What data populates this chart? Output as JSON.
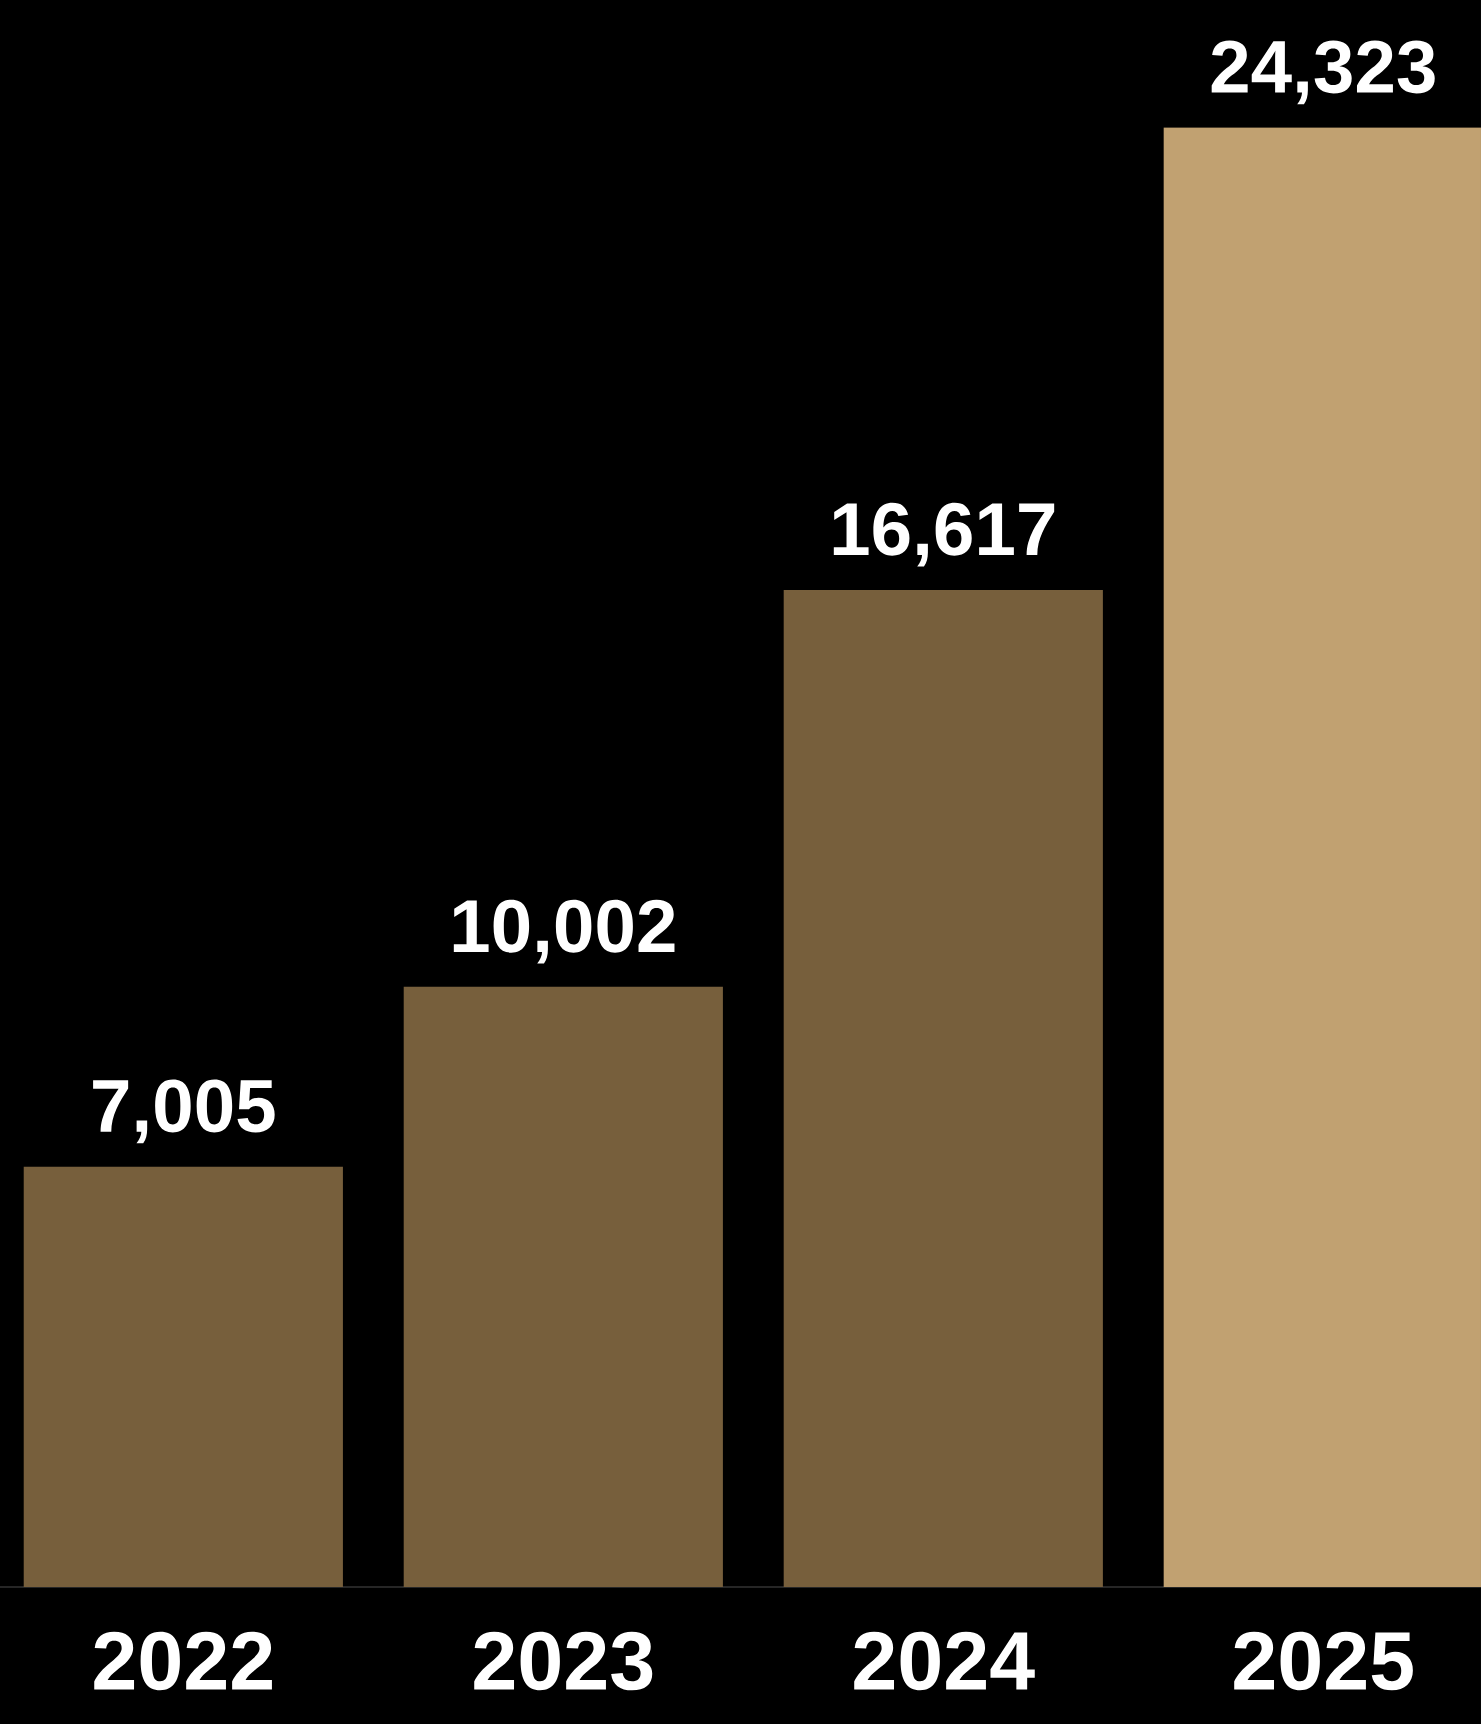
{
  "chart_data": {
    "type": "bar",
    "categories": [
      "2022",
      "2023",
      "2024",
      "2025"
    ],
    "values": [
      7005,
      10002,
      16617,
      24323
    ],
    "value_labels": [
      "7,005",
      "10,002",
      "16,617",
      "24,323"
    ],
    "colors": [
      "#775f3c",
      "#775f3c",
      "#775f3c",
      "#c1a171"
    ]
  }
}
